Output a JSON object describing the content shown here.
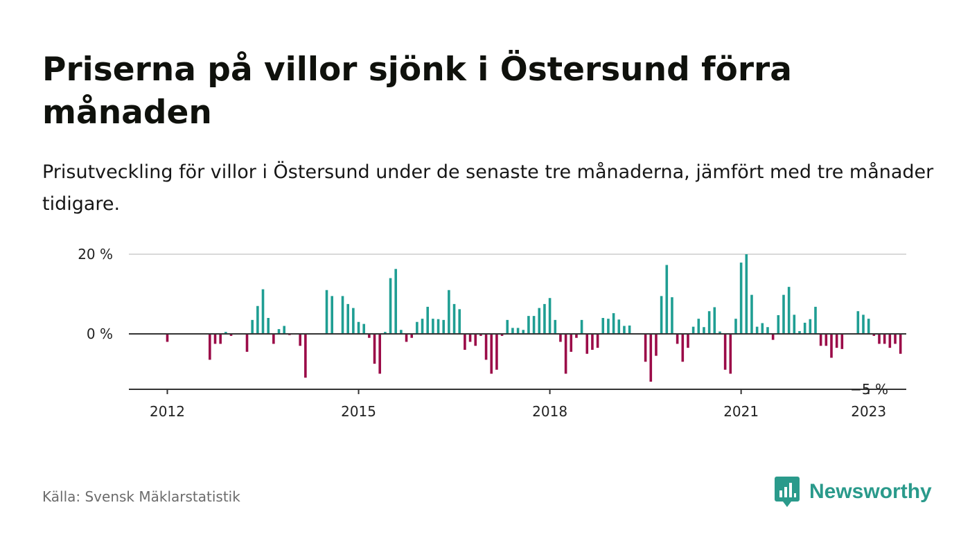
{
  "title": "Priserna på villor sjönk i Östersund förra månaden",
  "subtitle": "Prisutveckling för villor i Östersund under de senaste tre månaderna, jämfört med tre månader tidigare.",
  "source": "Källa: Svensk Mäklarstatistik",
  "brand": {
    "name": "Newsworthy",
    "icon": "newsworthy-logo-icon",
    "color": "#2a9a8b"
  },
  "chart_data": {
    "type": "bar",
    "x_unit": "month",
    "start": "2011-11",
    "values": [
      0,
      0,
      -2,
      0,
      0,
      0,
      0,
      0,
      0,
      0,
      -6.5,
      -2.5,
      -2.5,
      0.5,
      -0.5,
      0,
      0,
      -4.5,
      3.5,
      7,
      11.2,
      4,
      -2.5,
      1.2,
      2,
      -0.3,
      0,
      -3,
      -11,
      0,
      0,
      0,
      11,
      9.5,
      0,
      9.5,
      7.5,
      6.5,
      3,
      2.5,
      -1,
      -7.5,
      -10,
      0.5,
      14,
      16.3,
      1,
      -2,
      -1,
      3,
      3.8,
      6.8,
      3.8,
      3.7,
      3.5,
      11,
      7.5,
      6.2,
      -4,
      -2,
      -3,
      -0.5,
      -6.5,
      -10,
      -9,
      -0.5,
      3.5,
      1.5,
      1.5,
      1,
      4.5,
      4.5,
      6.5,
      7.5,
      9,
      3.5,
      -2,
      -10,
      -4.5,
      -1,
      3.5,
      -5,
      -4,
      -3.5,
      4,
      3.8,
      5.2,
      3.6,
      2,
      2.1,
      0,
      0,
      -7,
      -12,
      -5.5,
      9.5,
      17.3,
      9.2,
      -2.5,
      -7,
      -3.5,
      1.8,
      3.8,
      1.7,
      5.7,
      6.7,
      0.6,
      -9,
      -10,
      3.8,
      17.9,
      20,
      9.8,
      1.8,
      2.7,
      1.7,
      -1.5,
      4.7,
      9.8,
      11.8,
      4.8,
      0.7,
      2.8,
      3.7,
      6.8,
      -3,
      -3,
      -6,
      -3.5,
      -3.8,
      0,
      0,
      5.7,
      4.8,
      3.8,
      -0.5,
      -2.5,
      -2.5,
      -3.5,
      -2.5,
      -5
    ],
    "ylim": [
      -14,
      20
    ],
    "yticks": [
      {
        "value": 0,
        "label": "0 %"
      },
      {
        "value": 20,
        "label": "20 %"
      }
    ],
    "xticks": [
      {
        "year": 2012,
        "label": "2012"
      },
      {
        "year": 2015,
        "label": "2015"
      },
      {
        "year": 2018,
        "label": "2018"
      },
      {
        "year": 2021,
        "label": "2021"
      },
      {
        "year": 2023,
        "label": "2023"
      }
    ],
    "last_value_label": "−5 %",
    "positive_color": "#1f9e93",
    "negative_color": "#9b0b48",
    "gridlines": true
  }
}
